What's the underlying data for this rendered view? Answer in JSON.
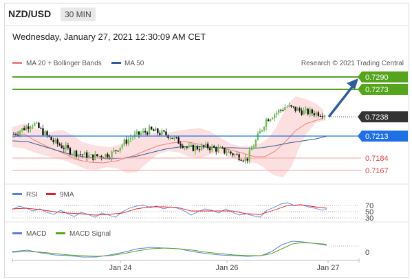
{
  "header": {
    "pair": "NZD/USD",
    "timeframe": "30 MIN",
    "datetime": "Wednesday, January 27, 2021 12:30:09 AM CET"
  },
  "price_panel": {
    "legend": [
      {
        "label": "MA 20 + Bollinger Bands",
        "color": "#f08080"
      },
      {
        "label": "MA 50",
        "color": "#2f5d9a"
      }
    ],
    "copyright": "Research © 2021 Trading Central",
    "levels": [
      {
        "value": "0.7290",
        "kind": "resistance",
        "color": "#55a51c"
      },
      {
        "value": "0.7273",
        "kind": "resistance",
        "color": "#55a51c"
      },
      {
        "value": "0.7238",
        "kind": "current",
        "color": "#333333"
      },
      {
        "value": "0.7213",
        "kind": "pivot",
        "color": "#1f6fe5"
      },
      {
        "value": "0.7184",
        "kind": "support",
        "color": "#e04040"
      },
      {
        "value": "0.7167",
        "kind": "support",
        "color": "#e04040"
      }
    ]
  },
  "rsi_panel": {
    "legend": [
      {
        "label": "RSI",
        "color": "#5b7fd6"
      },
      {
        "label": "9MA",
        "color": "#e02020"
      }
    ],
    "levels": [
      "70",
      "50",
      "30"
    ]
  },
  "macd_panel": {
    "legend": [
      {
        "label": "MACD",
        "color": "#5b7fd6"
      },
      {
        "label": "MACD Signal",
        "color": "#55a51c"
      }
    ],
    "levels": [
      "0"
    ]
  },
  "x_axis": {
    "labels": [
      "Jan 24",
      "Jan 26",
      "Jan 27"
    ]
  },
  "chart_data": {
    "type": "line",
    "title": "NZD/USD",
    "subtitle": "30 MIN",
    "y_range": [
      0.715,
      0.73
    ],
    "x_labels": [
      "Jan 24",
      "Jan 26",
      "Jan 27"
    ],
    "horizontal_levels": [
      0.729,
      0.7273,
      0.7238,
      0.7213,
      0.7184,
      0.7167
    ],
    "series": [
      {
        "name": "MA 20 + Bollinger Bands",
        "values": [
          0.7212,
          0.7218,
          0.7205,
          0.7188,
          0.7182,
          0.7185,
          0.72,
          0.721,
          0.7212,
          0.7207,
          0.7196,
          0.7192,
          0.719,
          0.721,
          0.724,
          0.724
        ]
      },
      {
        "name": "MA 50",
        "values": [
          0.7215,
          0.721,
          0.7198,
          0.7192,
          0.719,
          0.7192,
          0.7198,
          0.7204,
          0.7205,
          0.7202,
          0.72,
          0.7198,
          0.7198,
          0.7202,
          0.7208,
          0.7213
        ]
      }
    ],
    "price": [
      0.721,
      0.7225,
      0.72,
      0.7185,
      0.7178,
      0.7182,
      0.7205,
      0.7215,
      0.7208,
      0.719,
      0.7192,
      0.7185,
      0.7175,
      0.723,
      0.7248,
      0.724,
      0.7238
    ],
    "forecast": {
      "from": 0.7238,
      "to": 0.729
    }
  }
}
